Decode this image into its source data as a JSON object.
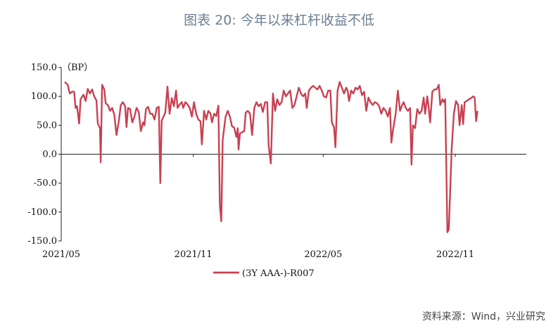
{
  "title": "图表 20: 今年以来杠杆收益不低",
  "source": "资料来源：Wind，兴业研究",
  "chart_data": {
    "type": "line",
    "unit_label": "（BP）",
    "ylim": [
      -150,
      150
    ],
    "yticks": [
      150,
      100,
      50,
      0,
      -50,
      -100,
      -150
    ],
    "ytick_labels": [
      "150.0",
      "100.0",
      "50.0",
      "0.0",
      "-50.0",
      "-100.0",
      "-150.0"
    ],
    "x_range": [
      "2021-05-01",
      "2023-02-08"
    ],
    "xticks": [
      {
        "date": "2021-05-01",
        "label": "2021/05"
      },
      {
        "date": "2021-11-01",
        "label": "2021/11"
      },
      {
        "date": "2022-05-01",
        "label": "2022/05"
      },
      {
        "date": "2022-11-01",
        "label": "2022/11"
      }
    ],
    "legend_position": "bottom-center",
    "series": [
      {
        "name": "(3Y AAA-)-R007",
        "color": "#c84152",
        "points": [
          [
            "2021-05-06",
            125
          ],
          [
            "2021-05-10",
            120
          ],
          [
            "2021-05-13",
            105
          ],
          [
            "2021-05-16",
            108
          ],
          [
            "2021-05-19",
            108
          ],
          [
            "2021-05-21",
            80
          ],
          [
            "2021-05-23",
            83
          ],
          [
            "2021-05-26",
            53
          ],
          [
            "2021-05-28",
            95
          ],
          [
            "2021-06-01",
            103
          ],
          [
            "2021-06-04",
            92
          ],
          [
            "2021-06-07",
            113
          ],
          [
            "2021-06-10",
            105
          ],
          [
            "2021-06-13",
            112
          ],
          [
            "2021-06-16",
            100
          ],
          [
            "2021-06-19",
            93
          ],
          [
            "2021-06-21",
            53
          ],
          [
            "2021-06-24",
            45
          ],
          [
            "2021-06-25",
            -14
          ],
          [
            "2021-06-27",
            120
          ],
          [
            "2021-06-30",
            112
          ],
          [
            "2021-07-02",
            88
          ],
          [
            "2021-07-05",
            85
          ],
          [
            "2021-07-08",
            75
          ],
          [
            "2021-07-11",
            80
          ],
          [
            "2021-07-14",
            68
          ],
          [
            "2021-07-17",
            33
          ],
          [
            "2021-07-20",
            55
          ],
          [
            "2021-07-23",
            85
          ],
          [
            "2021-07-26",
            90
          ],
          [
            "2021-07-29",
            83
          ],
          [
            "2021-07-31",
            47
          ],
          [
            "2021-08-02",
            80
          ],
          [
            "2021-08-05",
            78
          ],
          [
            "2021-08-08",
            55
          ],
          [
            "2021-08-11",
            65
          ],
          [
            "2021-08-14",
            80
          ],
          [
            "2021-08-17",
            73
          ],
          [
            "2021-08-20",
            40
          ],
          [
            "2021-08-23",
            55
          ],
          [
            "2021-08-25",
            50
          ],
          [
            "2021-08-27",
            78
          ],
          [
            "2021-08-30",
            82
          ],
          [
            "2021-09-02",
            70
          ],
          [
            "2021-09-05",
            70
          ],
          [
            "2021-09-08",
            60
          ],
          [
            "2021-09-11",
            80
          ],
          [
            "2021-09-14",
            82
          ],
          [
            "2021-09-16",
            -50
          ],
          [
            "2021-09-18",
            58
          ],
          [
            "2021-09-23",
            72
          ],
          [
            "2021-09-26",
            117
          ],
          [
            "2021-09-29",
            70
          ],
          [
            "2021-10-02",
            97
          ],
          [
            "2021-10-05",
            83
          ],
          [
            "2021-10-08",
            110
          ],
          [
            "2021-10-10",
            80
          ],
          [
            "2021-10-13",
            86
          ],
          [
            "2021-10-16",
            90
          ],
          [
            "2021-10-18",
            80
          ],
          [
            "2021-10-21",
            90
          ],
          [
            "2021-10-24",
            86
          ],
          [
            "2021-10-27",
            80
          ],
          [
            "2021-10-30",
            65
          ],
          [
            "2021-11-02",
            90
          ],
          [
            "2021-11-05",
            70
          ],
          [
            "2021-11-08",
            60
          ],
          [
            "2021-11-11",
            57
          ],
          [
            "2021-11-13",
            17
          ],
          [
            "2021-11-16",
            75
          ],
          [
            "2021-11-19",
            60
          ],
          [
            "2021-11-22",
            75
          ],
          [
            "2021-11-25",
            70
          ],
          [
            "2021-11-27",
            55
          ],
          [
            "2021-11-30",
            70
          ],
          [
            "2021-12-03",
            66
          ],
          [
            "2021-12-06",
            84
          ],
          [
            "2021-12-08",
            -88
          ],
          [
            "2021-12-10",
            -116
          ],
          [
            "2021-12-12",
            25
          ],
          [
            "2021-12-16",
            65
          ],
          [
            "2021-12-19",
            75
          ],
          [
            "2021-12-22",
            65
          ],
          [
            "2021-12-25",
            48
          ],
          [
            "2021-12-28",
            46
          ],
          [
            "2021-12-31",
            30
          ],
          [
            "2022-01-02",
            45
          ],
          [
            "2022-01-03",
            8
          ],
          [
            "2022-01-05",
            36
          ],
          [
            "2022-01-08",
            38
          ],
          [
            "2022-01-11",
            40
          ],
          [
            "2022-01-13",
            72
          ],
          [
            "2022-01-16",
            75
          ],
          [
            "2022-01-19",
            70
          ],
          [
            "2022-01-22",
            33
          ],
          [
            "2022-01-25",
            80
          ],
          [
            "2022-01-28",
            90
          ],
          [
            "2022-01-31",
            83
          ],
          [
            "2022-02-03",
            87
          ],
          [
            "2022-02-06",
            73
          ],
          [
            "2022-02-09",
            90
          ],
          [
            "2022-02-12",
            90
          ],
          [
            "2022-02-14",
            15
          ],
          [
            "2022-02-17",
            -16
          ],
          [
            "2022-02-20",
            105
          ],
          [
            "2022-02-23",
            75
          ],
          [
            "2022-02-26",
            95
          ],
          [
            "2022-03-01",
            85
          ],
          [
            "2022-03-04",
            90
          ],
          [
            "2022-03-07",
            110
          ],
          [
            "2022-03-10",
            100
          ],
          [
            "2022-03-13",
            105
          ],
          [
            "2022-03-16",
            110
          ],
          [
            "2022-03-19",
            80
          ],
          [
            "2022-03-22",
            85
          ],
          [
            "2022-03-25",
            100
          ],
          [
            "2022-03-28",
            115
          ],
          [
            "2022-03-31",
            105
          ],
          [
            "2022-04-03",
            100
          ],
          [
            "2022-04-06",
            105
          ],
          [
            "2022-04-08",
            80
          ],
          [
            "2022-04-11",
            110
          ],
          [
            "2022-04-14",
            115
          ],
          [
            "2022-04-17",
            118
          ],
          [
            "2022-04-20",
            115
          ],
          [
            "2022-04-23",
            112
          ],
          [
            "2022-04-26",
            118
          ],
          [
            "2022-04-29",
            110
          ],
          [
            "2022-05-02",
            100
          ],
          [
            "2022-05-05",
            98
          ],
          [
            "2022-05-08",
            110
          ],
          [
            "2022-05-11",
            110
          ],
          [
            "2022-05-13",
            55
          ],
          [
            "2022-05-16",
            47
          ],
          [
            "2022-05-18",
            12
          ],
          [
            "2022-05-21",
            110
          ],
          [
            "2022-05-24",
            125
          ],
          [
            "2022-05-27",
            115
          ],
          [
            "2022-05-30",
            105
          ],
          [
            "2022-06-02",
            115
          ],
          [
            "2022-06-04",
            110
          ],
          [
            "2022-06-06",
            92
          ],
          [
            "2022-06-09",
            110
          ],
          [
            "2022-06-12",
            105
          ],
          [
            "2022-06-15",
            115
          ],
          [
            "2022-06-18",
            112
          ],
          [
            "2022-06-21",
            118
          ],
          [
            "2022-06-24",
            102
          ],
          [
            "2022-06-27",
            108
          ],
          [
            "2022-06-30",
            75
          ],
          [
            "2022-07-03",
            98
          ],
          [
            "2022-07-06",
            90
          ],
          [
            "2022-07-09",
            85
          ],
          [
            "2022-07-12",
            90
          ],
          [
            "2022-07-15",
            88
          ],
          [
            "2022-07-18",
            83
          ],
          [
            "2022-07-21",
            70
          ],
          [
            "2022-07-24",
            80
          ],
          [
            "2022-07-27",
            75
          ],
          [
            "2022-07-30",
            65
          ],
          [
            "2022-08-02",
            80
          ],
          [
            "2022-08-04",
            20
          ],
          [
            "2022-08-06",
            40
          ],
          [
            "2022-08-10",
            70
          ],
          [
            "2022-08-13",
            110
          ],
          [
            "2022-08-16",
            75
          ],
          [
            "2022-08-19",
            85
          ],
          [
            "2022-08-21",
            90
          ],
          [
            "2022-08-24",
            80
          ],
          [
            "2022-08-27",
            75
          ],
          [
            "2022-08-30",
            80
          ],
          [
            "2022-09-01",
            -18
          ],
          [
            "2022-09-03",
            50
          ],
          [
            "2022-09-06",
            45
          ],
          [
            "2022-09-09",
            78
          ],
          [
            "2022-09-12",
            70
          ],
          [
            "2022-09-15",
            75
          ],
          [
            "2022-09-18",
            98
          ],
          [
            "2022-09-20",
            70
          ],
          [
            "2022-09-23",
            100
          ],
          [
            "2022-09-25",
            80
          ],
          [
            "2022-09-27",
            55
          ],
          [
            "2022-09-30",
            108
          ],
          [
            "2022-10-03",
            112
          ],
          [
            "2022-10-06",
            112
          ],
          [
            "2022-10-09",
            120
          ],
          [
            "2022-10-11",
            85
          ],
          [
            "2022-10-14",
            95
          ],
          [
            "2022-10-16",
            90
          ],
          [
            "2022-10-18",
            95
          ],
          [
            "2022-10-21",
            -135
          ],
          [
            "2022-10-23",
            -130
          ],
          [
            "2022-10-25",
            -60
          ],
          [
            "2022-10-27",
            10
          ],
          [
            "2022-10-30",
            70
          ],
          [
            "2022-11-02",
            92
          ],
          [
            "2022-11-05",
            85
          ],
          [
            "2022-11-07",
            50
          ],
          [
            "2022-11-10",
            85
          ],
          [
            "2022-11-12",
            52
          ],
          [
            "2022-11-14",
            90
          ],
          [
            "2022-11-17",
            92
          ],
          [
            "2022-11-20",
            95
          ],
          [
            "2022-11-23",
            97
          ],
          [
            "2022-11-26",
            100
          ],
          [
            "2022-11-28",
            98
          ],
          [
            "2022-11-30",
            57
          ],
          [
            "2022-12-02",
            75
          ]
        ]
      }
    ]
  }
}
